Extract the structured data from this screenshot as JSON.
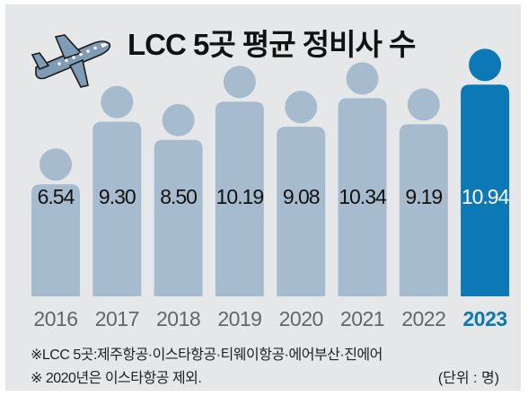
{
  "title": "LCC 5곳 평균 정비사 수",
  "notes": {
    "line1": "※LCC 5곳:제주항공·이스타항공·티웨이항공·에어부산·진에어",
    "line2": "※ 2020년은 이스타항공 제외.",
    "unit": "(단위 : 명)"
  },
  "colors": {
    "background": "#e6e7e8",
    "bar": "#a7bbcf",
    "highlight": "#0c78b5",
    "label_highlight": "#0c78b5",
    "axis_label": "#666666",
    "value_text": "#111111",
    "value_text_highlight": "#ffffff"
  },
  "icon": "airplane-icon",
  "chart_data": {
    "type": "bar",
    "title": "LCC 5곳 평균 정비사 수",
    "categories": [
      "2016",
      "2017",
      "2018",
      "2019",
      "2020",
      "2021",
      "2022",
      "2023"
    ],
    "values": [
      6.54,
      9.3,
      8.5,
      10.19,
      9.08,
      10.34,
      9.19,
      10.94
    ],
    "value_labels": [
      "6.54",
      "9.30",
      "8.50",
      "10.19",
      "9.08",
      "10.34",
      "9.19",
      "10.94"
    ],
    "highlight_category": "2023",
    "ylabel": "",
    "xlabel": "",
    "grid": false,
    "legend": "none"
  }
}
